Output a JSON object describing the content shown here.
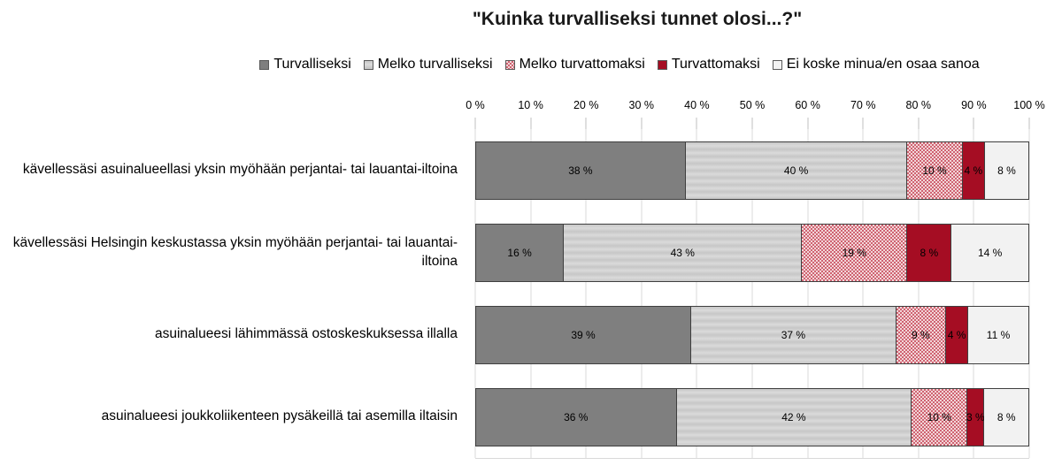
{
  "title": "\"Kuinka turvalliseksi tunnet olosi...?\"",
  "axis": {
    "ticks": [
      "0 %",
      "10 %",
      "20 %",
      "30 %",
      "40 %",
      "50 %",
      "60 %",
      "70 %",
      "80 %",
      "90 %",
      "100 %"
    ]
  },
  "colors": {
    "safe_gray": "#7f7f7f",
    "fairly_safe_gray": "#d2d2d2",
    "fairly_unsafe_pink": "#dd8c96",
    "unsafe_red": "#a50d23",
    "not_applicable_light": "#f2f2f2",
    "gridline": "#d9d9d9",
    "segment_border": "#3f3f3f"
  },
  "chart_data": {
    "type": "bar",
    "orientation": "horizontal",
    "stacked": true,
    "title": "\"Kuinka turvalliseksi tunnet olosi...?\"",
    "xlabel": "",
    "ylabel": "",
    "xlim": [
      0,
      100
    ],
    "x_tick_step": 10,
    "value_suffix": " %",
    "grid": true,
    "legend_position": "top",
    "categories": [
      "kävellessäsi asuinalueellasi yksin myöhään perjantai- tai lauantai-iltoina",
      "kävellessäsi Helsingin keskustassa yksin myöhään perjantai- tai lauantai-iltoina",
      "asuinalueesi lähimmässä ostoskeskuksessa illalla",
      "asuinalueesi joukkoliikenteen pysäkeillä tai asemilla iltaisin"
    ],
    "series": [
      {
        "name": "Turvalliseksi",
        "color": "#7f7f7f",
        "pattern": "solid",
        "values": [
          38,
          16,
          39,
          36
        ]
      },
      {
        "name": "Melko turvalliseksi",
        "color": "#d2d2d2",
        "pattern": "horizontal-stripes",
        "values": [
          40,
          43,
          37,
          42
        ]
      },
      {
        "name": "Melko turvattomaksi",
        "color": "#dd8c96",
        "pattern": "checker",
        "values": [
          10,
          19,
          9,
          10
        ]
      },
      {
        "name": "Turvattomaksi",
        "color": "#a50d23",
        "pattern": "solid",
        "values": [
          4,
          8,
          4,
          3
        ]
      },
      {
        "name": "Ei koske minua/en osaa sanoa",
        "color": "#f2f2f2",
        "pattern": "solid",
        "values": [
          8,
          14,
          11,
          8
        ]
      }
    ]
  }
}
